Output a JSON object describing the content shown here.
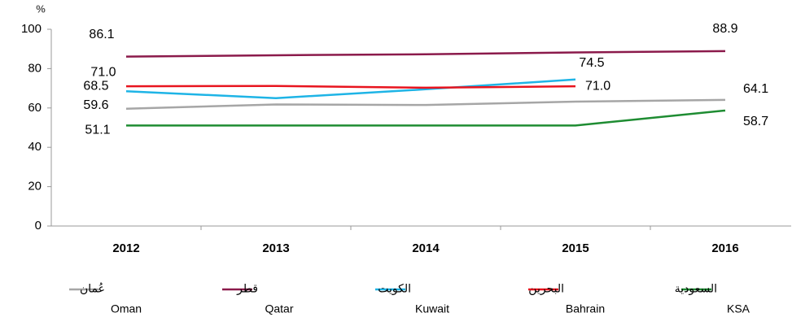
{
  "chart_data": {
    "type": "line",
    "y_label": "%",
    "categories": [
      "2012",
      "2013",
      "2014",
      "2015",
      "2016"
    ],
    "ylim": [
      0,
      100
    ],
    "yticks": [
      0,
      20,
      40,
      60,
      80,
      100
    ],
    "grid": false,
    "series": [
      {
        "name": "Oman",
        "name_ar": "عُمان",
        "color": "#a6a6a6",
        "label_color": "#a6a6a6",
        "values": [
          59.6,
          61.8,
          61.5,
          63.2,
          64.1
        ],
        "value_labels": [
          "59.6",
          null,
          null,
          null,
          "64.1"
        ]
      },
      {
        "name": "Qatar",
        "name_ar": "قطر",
        "color": "#8b1a4b",
        "label_color": "#c0102c",
        "values": [
          86.1,
          86.8,
          87.3,
          88.2,
          88.9
        ],
        "value_labels": [
          "86.1",
          null,
          null,
          null,
          "88.9"
        ]
      },
      {
        "name": "Kuwait",
        "name_ar": "الكويت",
        "color": "#1eb4e6",
        "label_color": "#1eb4e6",
        "values": [
          68.5,
          65.0,
          69.5,
          74.5,
          null
        ],
        "value_labels": [
          "68.5",
          null,
          null,
          "74.5",
          null
        ]
      },
      {
        "name": "Bahrain",
        "name_ar": "البحرين",
        "color": "#e8141e",
        "label_color": "#e8141e",
        "values": [
          71.0,
          71.2,
          70.3,
          71.0,
          null
        ],
        "value_labels": [
          "71.0",
          null,
          null,
          "71.0",
          null
        ]
      },
      {
        "name": "KSA",
        "name_ar": "السعودية",
        "color": "#1e8c32",
        "label_color": "#1e7a2c",
        "values": [
          51.1,
          51.1,
          51.1,
          51.1,
          58.7
        ],
        "value_labels": [
          "51.1",
          null,
          null,
          null,
          "58.7"
        ]
      }
    ]
  }
}
